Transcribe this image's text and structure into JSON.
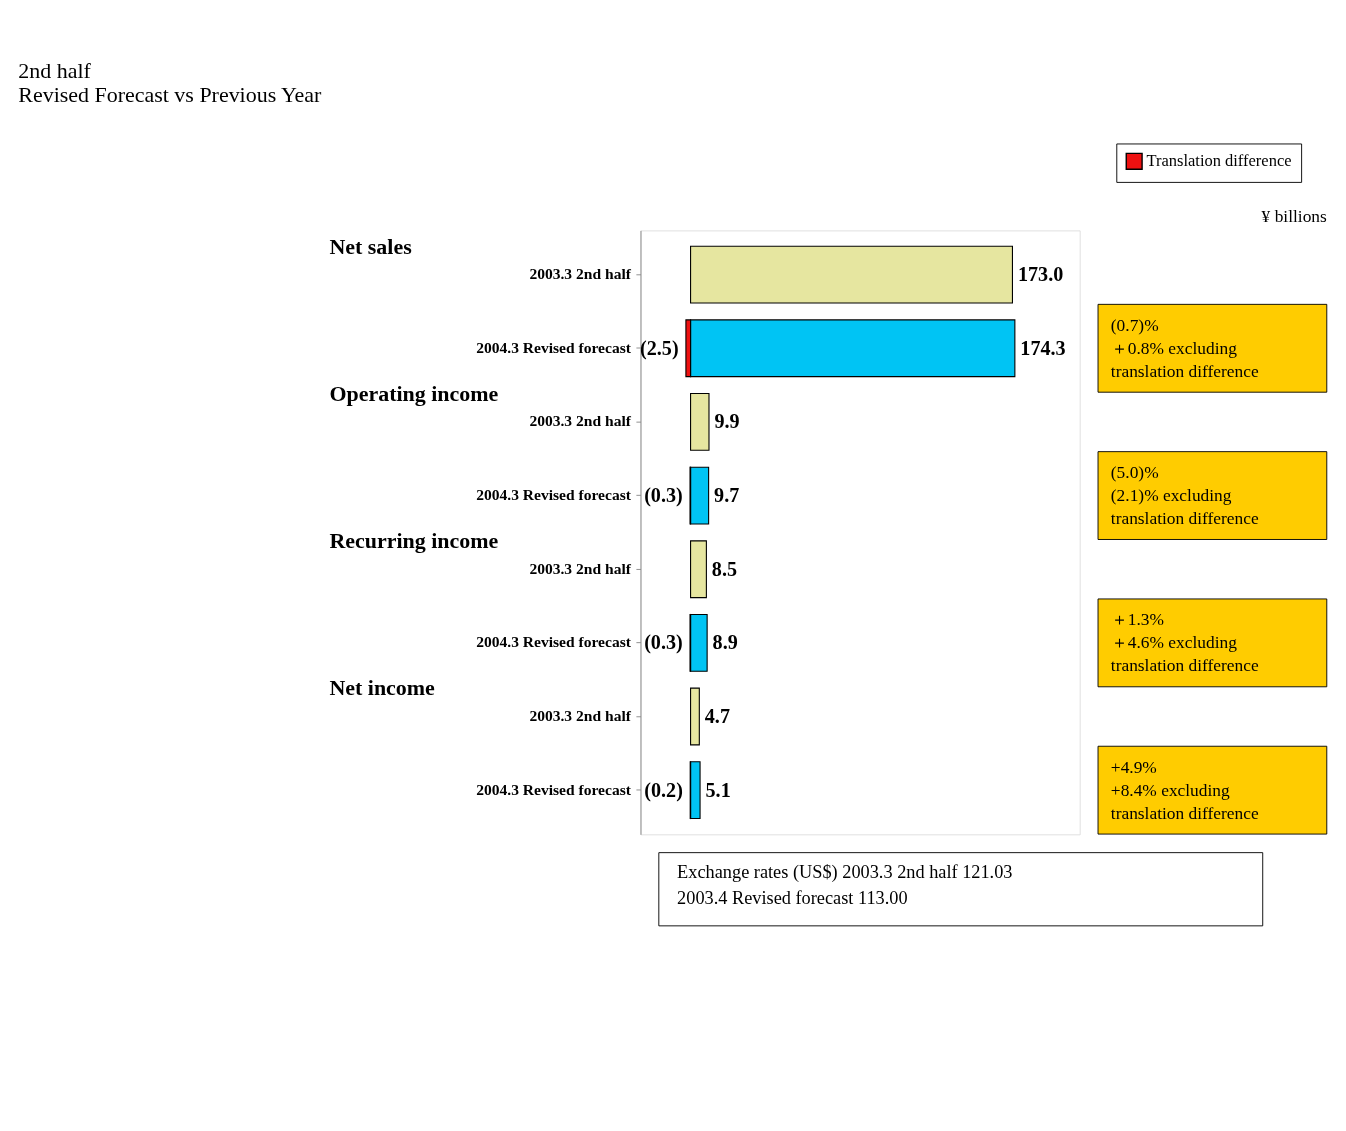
{
  "chart_data": {
    "type": "bar",
    "orientation": "horizontal",
    "title": "2nd half\nRevised Forecast vs Previous Year",
    "categories": [
      "2003.3 2nd half",
      "2004.3 Revised forecast",
      "2003.3 2nd half",
      "2004.3 Revised forecast",
      "2003.3 2nd half",
      "2004.3 Revised forecast",
      "2003.3 2nd half",
      "2004.3 Revised forecast"
    ],
    "series": [
      {
        "colors": [
          "#e6e6a0",
          "#00c4f4",
          "#e6e6a0",
          "#00c4f4",
          "#e6e6a0",
          "#00c4f4",
          "#e6e6a0",
          "#00c4f4"
        ],
        "values": [
          173.0,
          174.3,
          9.9,
          9.7,
          8.5,
          8.9,
          4.7,
          5.1
        ],
        "value_labels": [
          "173.0",
          "174.3",
          "9.9",
          "9.7",
          "8.5",
          "8.9",
          "4.7",
          "5.1"
        ]
      },
      {
        "name": "Translation difference",
        "color": "#ee1111",
        "values": [
          null,
          -2.5,
          null,
          -0.3,
          null,
          -0.3,
          null,
          -0.2
        ],
        "value_labels": [
          null,
          "(2.5)",
          null,
          "(0.3)",
          null,
          "(0.3)",
          null,
          "(0.2)"
        ]
      }
    ],
    "tick_labels": "y",
    "legend": "top right",
    "grid": false,
    "annotations": [
      "Net sales",
      "Operating income",
      "Recurring income",
      "Net income",
      "(0.7)%\n＋0.8% excluding\ntranslation difference",
      "(5.0)%\n(2.1)% excluding\ntranslation difference",
      "＋1.3%\n＋4.6% excluding\ntranslation difference",
      "+4.9%\n+8.4% excluding\ntranslation difference",
      "¥ billions",
      "Exchange rates (US$)     2003.3 2nd half              121.03\n                                    2003.4 Revised forecast   113.00"
    ]
  }
}
